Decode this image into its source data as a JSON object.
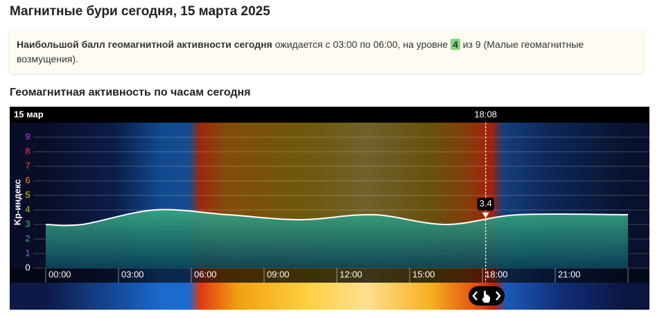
{
  "header": {
    "title": "Магнитные бури сегодня, 15 марта 2025"
  },
  "info": {
    "bold": "Наибольшой балл геомагнитной активности сегодня",
    "before": " ожидается с 03:00 по 06:00, на уровне ",
    "level": 4,
    "after": " из 9 (Малые геомагнитные возмущения)."
  },
  "section_title": "Геомагнитная активность по часам сегодня",
  "chart_data": {
    "type": "area",
    "date_label": "15 мар",
    "ylabel": "Kp-индекс",
    "x": [
      0,
      1.5,
      4.5,
      7.5,
      10.5,
      13.5,
      16.5,
      19.5,
      24
    ],
    "values": [
      3,
      3,
      4,
      3.67,
      3.33,
      3.67,
      3,
      3.67,
      3.67
    ],
    "xlim": [
      0,
      24
    ],
    "ylim": [
      0,
      9
    ],
    "yticks": [
      0,
      1,
      2,
      3,
      4,
      5,
      6,
      7,
      8,
      9
    ],
    "ytick_colors": [
      "#ffffff",
      "#5b7fe0",
      "#3aa0c8",
      "#3cc070",
      "#9ad040",
      "#e8d020",
      "#f09020",
      "#f05030",
      "#f03050",
      "#b040e0"
    ],
    "xticks": [
      {
        "value": 0,
        "label": "00:00"
      },
      {
        "value": 3,
        "label": "03:00"
      },
      {
        "value": 6,
        "label": "06:00"
      },
      {
        "value": 9,
        "label": "09:00"
      },
      {
        "value": 12,
        "label": "12:00"
      },
      {
        "value": 15,
        "label": "15:00"
      },
      {
        "value": 18,
        "label": "18:00"
      },
      {
        "value": 21,
        "label": "21:00"
      }
    ],
    "grid": true,
    "current": {
      "label": "18:08",
      "x": 18.133,
      "value": 3.4
    }
  }
}
